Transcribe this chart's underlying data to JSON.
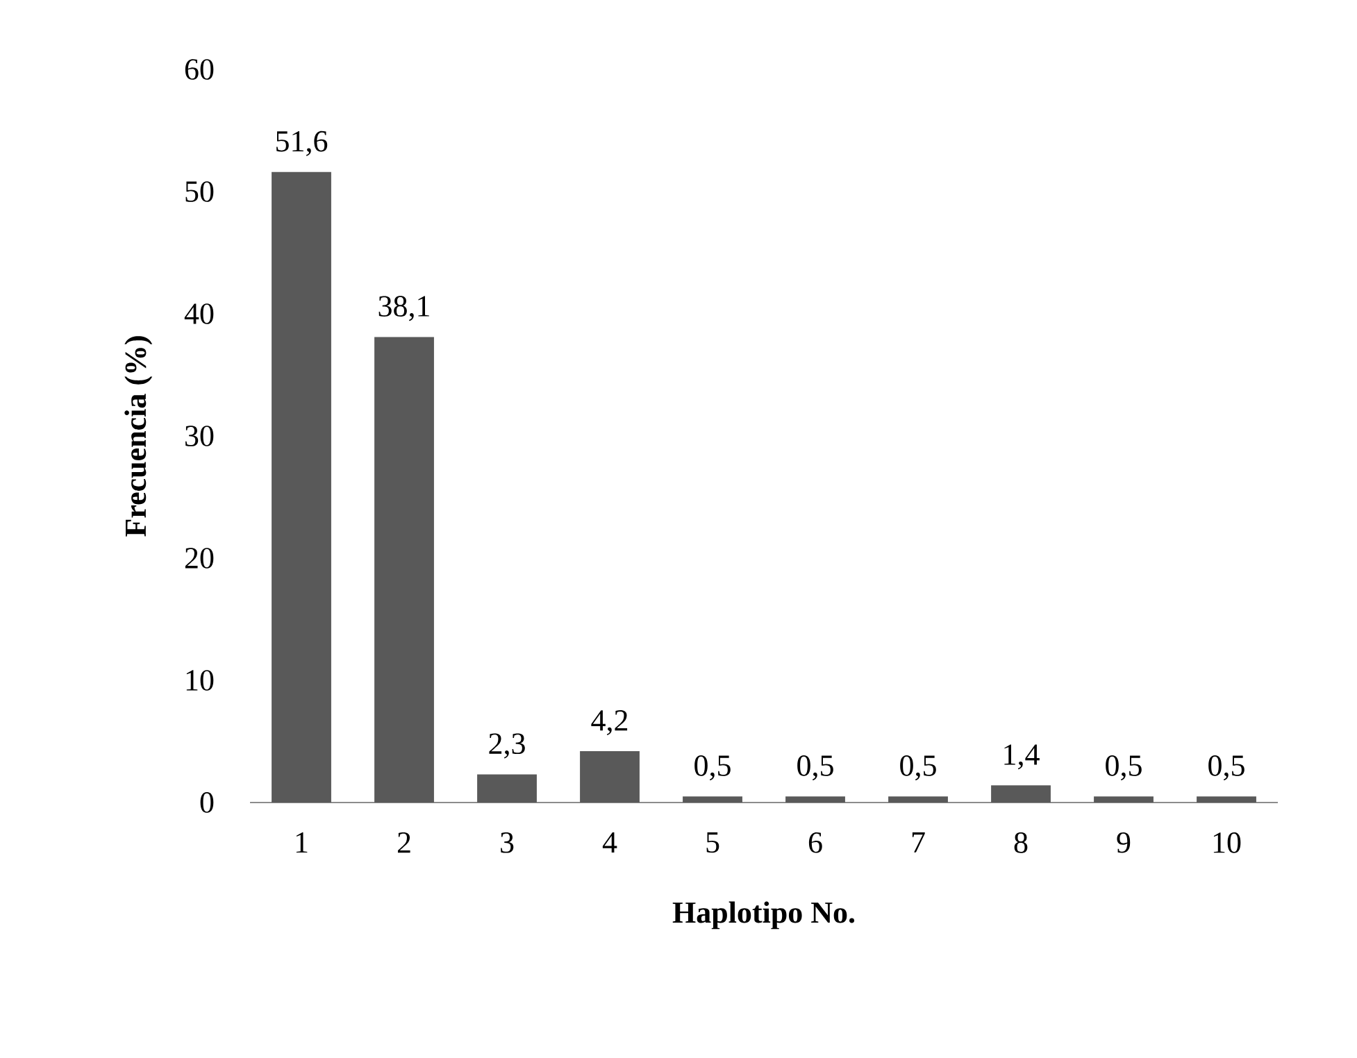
{
  "chart_data": {
    "type": "bar",
    "xlabel": "Haplotipo No.",
    "ylabel": "Frecuencia (%)",
    "categories": [
      "1",
      "2",
      "3",
      "4",
      "5",
      "6",
      "7",
      "8",
      "9",
      "10"
    ],
    "values": [
      51.6,
      38.1,
      2.3,
      4.2,
      0.5,
      0.5,
      0.5,
      1.4,
      0.5,
      0.5
    ],
    "value_labels": [
      "51,6",
      "38,1",
      "2,3",
      "4,2",
      "0,5",
      "0,5",
      "0,5",
      "1,4",
      "0,5",
      "0,5"
    ],
    "color": "#595959",
    "ylim": [
      0,
      60
    ],
    "yticks": [
      0,
      10,
      20,
      30,
      40,
      50,
      60
    ],
    "grid": false
  }
}
